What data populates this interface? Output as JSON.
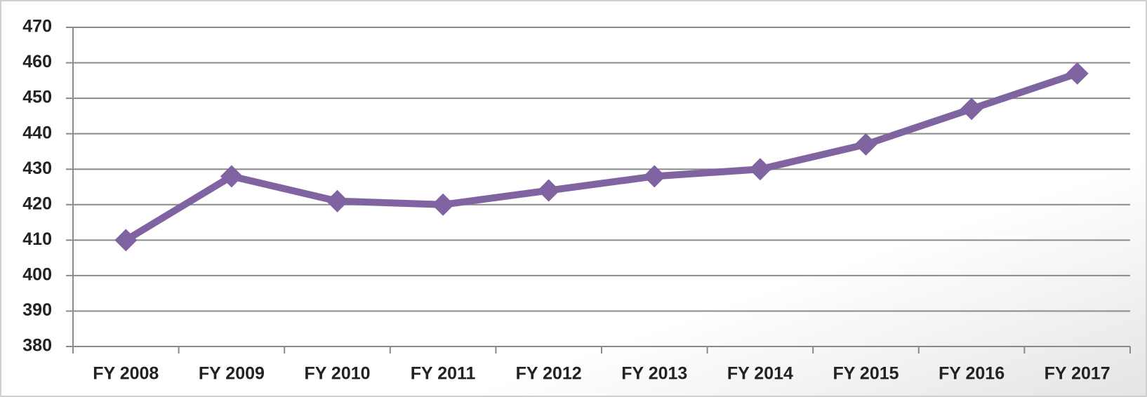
{
  "chart_data": {
    "type": "line",
    "categories": [
      "FY 2008",
      "FY 2009",
      "FY 2010",
      "FY 2011",
      "FY 2012",
      "FY 2013",
      "FY 2014",
      "FY 2015",
      "FY 2016",
      "FY 2017"
    ],
    "values": [
      410,
      428,
      421,
      420,
      424,
      428,
      430,
      437,
      447,
      457
    ],
    "color": "#8064a2",
    "ylim": [
      380,
      470
    ],
    "yticks": [
      380,
      390,
      400,
      410,
      420,
      430,
      440,
      450,
      460,
      470
    ],
    "grid": true
  }
}
